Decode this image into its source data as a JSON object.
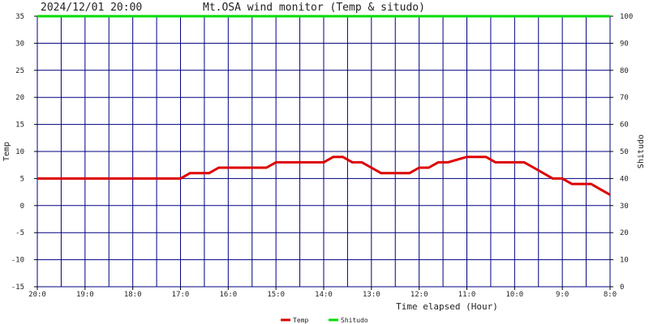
{
  "header": {
    "datetime": "2024/12/01 20:00",
    "title": "Mt.OSA wind monitor (Temp & situdo)"
  },
  "chart_data": {
    "type": "line",
    "xlabel": "Time elapsed (Hour)",
    "ylabel_left": "Temp",
    "ylabel_right": "Shitudo",
    "ylim_left": [
      -15,
      35
    ],
    "ylim_right": [
      0,
      100
    ],
    "y_ticks_left": [
      "35",
      "30",
      "25",
      "20",
      "15",
      "10",
      "5",
      "0",
      "-5",
      "-10",
      "-15"
    ],
    "y_ticks_right": [
      "100",
      "90",
      "80",
      "70",
      "60",
      "50",
      "40",
      "30",
      "20",
      "10",
      "0"
    ],
    "x_ticks": [
      "20:0",
      "19:0",
      "18:0",
      "17:0",
      "16:0",
      "15:0",
      "14:0",
      "13:0",
      "12:0",
      "11:0",
      "10:0",
      "9:0",
      "8:0"
    ],
    "grid": true,
    "legend_position": "bottom-center",
    "series": [
      {
        "name": "Temp",
        "color": "#dd0000",
        "axis": "left",
        "x": [
          0,
          3.0,
          3.2,
          3.6,
          3.8,
          4.8,
          5.0,
          5.8,
          6.0,
          6.2,
          6.4,
          6.6,
          6.8,
          7.0,
          7.2,
          7.5,
          7.8,
          8.0,
          8.2,
          8.4,
          8.6,
          9.0,
          9.4,
          9.6,
          9.8,
          10.0,
          10.2,
          10.4,
          10.8,
          11.0,
          11.2,
          11.6,
          11.8,
          12.0
        ],
        "values": [
          5,
          5,
          6,
          6,
          7,
          7,
          8,
          8,
          8,
          9,
          9,
          8,
          8,
          7,
          6,
          6,
          6,
          7,
          7,
          8,
          8,
          9,
          9,
          8,
          8,
          8,
          8,
          7,
          5,
          5,
          4,
          4,
          3,
          2
        ]
      },
      {
        "name": "Shitudo",
        "color": "#00dd00",
        "axis": "right",
        "x": [
          0,
          12
        ],
        "values": [
          100,
          100
        ]
      }
    ]
  }
}
